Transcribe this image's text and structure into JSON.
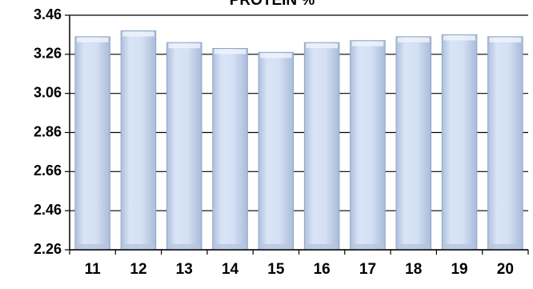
{
  "chart_data": {
    "type": "bar",
    "title": "PROTEIN %",
    "categories": [
      "11",
      "12",
      "13",
      "14",
      "15",
      "16",
      "17",
      "18",
      "19",
      "20"
    ],
    "values": [
      3.35,
      3.38,
      3.32,
      3.29,
      3.27,
      3.32,
      3.33,
      3.35,
      3.36,
      3.35
    ],
    "y_ticks": [
      "2.26",
      "2.46",
      "2.66",
      "2.86",
      "3.06",
      "3.26",
      "3.46"
    ],
    "ylim": [
      2.26,
      3.46
    ],
    "xlabel": "",
    "ylabel": "",
    "grid": true,
    "legend": "none",
    "colors": {
      "bar_fill": "#c9d8f0",
      "bar_edge": "#8fa6c8",
      "axis": "#000000"
    }
  }
}
